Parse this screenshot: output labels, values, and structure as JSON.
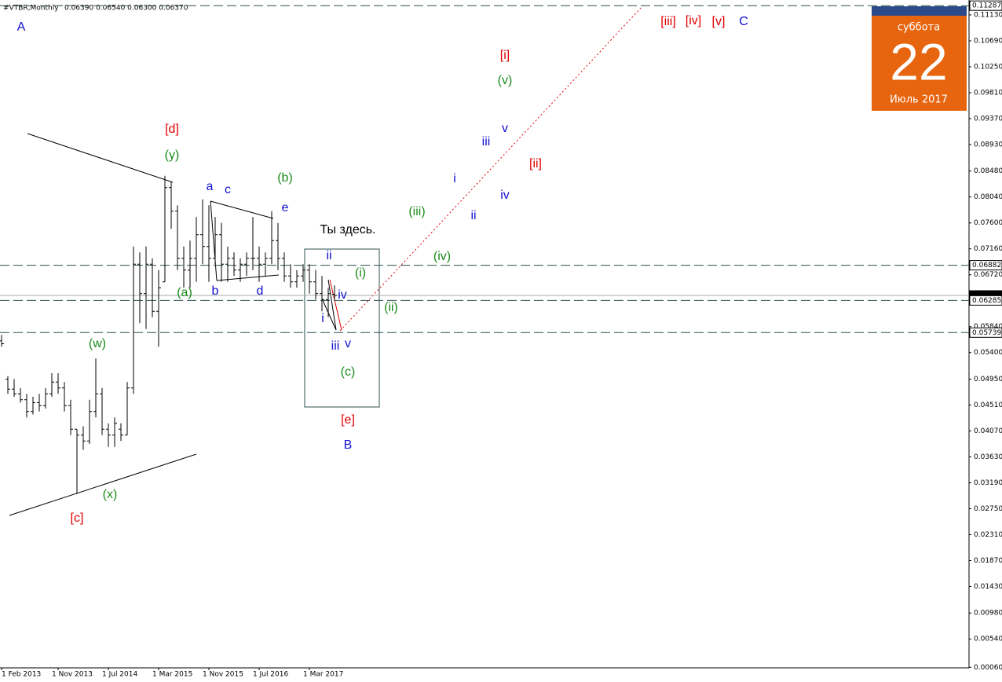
{
  "chart_data": {
    "type": "ohlc",
    "title": "#VTBR,Monthly",
    "subtitle": "0.06390 0.06540 0.06300 0.06370",
    "categories": [
      "1 Feb 2013",
      null,
      null,
      null,
      null,
      null,
      null,
      null,
      null,
      "1 Nov 2013",
      null,
      null,
      null,
      null,
      null,
      null,
      null,
      "1 Jul 2014",
      null,
      null,
      null,
      null,
      null,
      null,
      null,
      "1 Mar 2015",
      null,
      null,
      null,
      null,
      null,
      null,
      null,
      "1 Nov 2015",
      null,
      null,
      null,
      null,
      null,
      null,
      null,
      "1 Jul 2016",
      null,
      null,
      null,
      null,
      null,
      null,
      null,
      "1 Mar 2017",
      null,
      null,
      null,
      null
    ],
    "open": [
      0.056,
      0.0495,
      0.0478,
      0.047,
      0.046,
      0.044,
      0.0455,
      0.045,
      0.047,
      0.049,
      0.048,
      0.045,
      0.041,
      0.04,
      0.039,
      0.044,
      0.047,
      0.041,
      0.04,
      0.041,
      0.04,
      0.048,
      0.069,
      0.064,
      0.069,
      0.061,
      0.066,
      0.082,
      0.078,
      0.07,
      0.068,
      0.07,
      0.074,
      0.072,
      0.07,
      0.074,
      0.069,
      0.07,
      0.068,
      0.069,
      0.07,
      0.07,
      0.069,
      0.07,
      0.073,
      0.07,
      0.067,
      0.066,
      0.067,
      0.068,
      0.066,
      0.064,
      0.063,
      0.0639
    ],
    "high": [
      0.057,
      0.05,
      0.0495,
      0.048,
      0.047,
      0.0465,
      0.047,
      0.048,
      0.0505,
      0.0505,
      0.049,
      0.046,
      0.041,
      0.0415,
      0.046,
      0.053,
      0.048,
      0.042,
      0.043,
      0.042,
      0.049,
      0.072,
      0.071,
      0.072,
      0.07,
      0.068,
      0.084,
      0.083,
      0.079,
      0.072,
      0.073,
      0.077,
      0.08,
      0.079,
      0.077,
      0.076,
      0.072,
      0.071,
      0.07,
      0.071,
      0.077,
      0.072,
      0.071,
      0.078,
      0.076,
      0.071,
      0.069,
      0.068,
      0.069,
      0.069,
      0.068,
      0.067,
      0.065,
      0.0654
    ],
    "low": [
      0.055,
      0.047,
      0.0465,
      0.0455,
      0.043,
      0.0435,
      0.044,
      0.0445,
      0.0465,
      0.047,
      0.044,
      0.04,
      0.03,
      0.0375,
      0.0385,
      0.043,
      0.04,
      0.038,
      0.038,
      0.039,
      0.04,
      0.047,
      0.059,
      0.058,
      0.06,
      0.055,
      0.066,
      0.075,
      0.068,
      0.065,
      0.065,
      0.066,
      0.069,
      0.066,
      0.069,
      0.066,
      0.066,
      0.067,
      0.066,
      0.067,
      0.068,
      0.066,
      0.067,
      0.069,
      0.068,
      0.066,
      0.065,
      0.065,
      0.066,
      0.064,
      0.063,
      0.061,
      0.06,
      0.063
    ],
    "close": [
      0.0555,
      0.0478,
      0.047,
      0.046,
      0.044,
      0.0455,
      0.045,
      0.047,
      0.049,
      0.048,
      0.045,
      0.041,
      0.04,
      0.039,
      0.044,
      0.047,
      0.041,
      0.04,
      0.042,
      0.04,
      0.048,
      0.069,
      0.064,
      0.069,
      0.061,
      0.065,
      0.082,
      0.078,
      0.07,
      0.068,
      0.07,
      0.074,
      0.072,
      0.07,
      0.074,
      0.069,
      0.07,
      0.068,
      0.069,
      0.07,
      0.07,
      0.069,
      0.07,
      0.073,
      0.07,
      0.067,
      0.066,
      0.067,
      0.068,
      0.066,
      0.064,
      0.063,
      0.064,
      0.0637
    ],
    "color": "#000000",
    "ylim": [
      0.0005,
      0.11383
    ],
    "yticks": [
      {
        "value": 0.1113,
        "label": "0.11130"
      },
      {
        "value": 0.1069,
        "label": "0.10690"
      },
      {
        "value": 0.1025,
        "label": "0.10250"
      },
      {
        "value": 0.0981,
        "label": "0.09810"
      },
      {
        "value": 0.0937,
        "label": "0.09370"
      },
      {
        "value": 0.0893,
        "label": "0.08930"
      },
      {
        "value": 0.0848,
        "label": "0.08480"
      },
      {
        "value": 0.0804,
        "label": "0.08040"
      },
      {
        "value": 0.076,
        "label": "0.07600"
      },
      {
        "value": 0.0716,
        "label": "0.07160"
      },
      {
        "value": 0.0672,
        "label": "0.06720"
      },
      {
        "value": 0.0584,
        "label": "0.05840"
      },
      {
        "value": 0.054,
        "label": "0.05400"
      },
      {
        "value": 0.0495,
        "label": "0.04950"
      },
      {
        "value": 0.0451,
        "label": "0.04510"
      },
      {
        "value": 0.0407,
        "label": "0.04070"
      },
      {
        "value": 0.0363,
        "label": "0.03630"
      },
      {
        "value": 0.0319,
        "label": "0.03190"
      },
      {
        "value": 0.0275,
        "label": "0.02750"
      },
      {
        "value": 0.0231,
        "label": "0.02310"
      },
      {
        "value": 0.0187,
        "label": "0.01870"
      },
      {
        "value": 0.0143,
        "label": "0.01430"
      },
      {
        "value": 0.0098,
        "label": "0.00980"
      },
      {
        "value": 0.0054,
        "label": "0.00540"
      },
      {
        "value": 0.0006,
        "label": "0.00060"
      }
    ],
    "levels": [
      {
        "value": 0.11287,
        "label": "0.11287",
        "current": false
      },
      {
        "value": 0.06882,
        "label": "0.06882",
        "current": false
      },
      {
        "value": 0.0637,
        "label": "0.06370",
        "current": true
      },
      {
        "value": 0.06285,
        "label": "0.06285",
        "current": false
      },
      {
        "value": 0.05739,
        "label": "0.05739",
        "current": false
      }
    ],
    "annotations": [
      {
        "text": "A",
        "color": "#1010d0"
      },
      {
        "text": "[c]",
        "color": "#e00000"
      },
      {
        "text": "(x)",
        "color": "#1a8a1a"
      },
      {
        "text": "(w)",
        "color": "#1a8a1a"
      },
      {
        "text": "[d]",
        "color": "#e00000"
      },
      {
        "text": "(y)",
        "color": "#1a8a1a"
      },
      {
        "text": "(a)",
        "color": "#1a8a1a"
      },
      {
        "text": "a",
        "color": "#1010d0"
      },
      {
        "text": "c",
        "color": "#1010d0"
      },
      {
        "text": "b",
        "color": "#1010d0"
      },
      {
        "text": "d",
        "color": "#1010d0"
      },
      {
        "text": "(b)",
        "color": "#1a8a1a"
      },
      {
        "text": "e",
        "color": "#1010d0"
      },
      {
        "text": "ii",
        "color": "#1010d0"
      },
      {
        "text": "(i)",
        "color": "#1a8a1a"
      },
      {
        "text": "iv",
        "color": "#1010d0"
      },
      {
        "text": "i",
        "color": "#1010d0"
      },
      {
        "text": "(ii)",
        "color": "#1a8a1a"
      },
      {
        "text": "iii",
        "color": "#1010d0"
      },
      {
        "text": "v",
        "color": "#1010d0"
      },
      {
        "text": "(c)",
        "color": "#1a8a1a"
      },
      {
        "text": "[e]",
        "color": "#e00000"
      },
      {
        "text": "B",
        "color": "#1010d0"
      },
      {
        "text": "(iii)",
        "color": "#1a8a1a"
      },
      {
        "text": "(iv)",
        "color": "#1a8a1a"
      },
      {
        "text": "i",
        "color": "#1010d0"
      },
      {
        "text": "ii",
        "color": "#1010d0"
      },
      {
        "text": "iii",
        "color": "#1010d0"
      },
      {
        "text": "v",
        "color": "#1010d0"
      },
      {
        "text": "iv",
        "color": "#1010d0"
      },
      {
        "text": "[ii]",
        "color": "#e00000"
      },
      {
        "text": "[i]",
        "color": "#e00000"
      },
      {
        "text": "(v)",
        "color": "#1a8a1a"
      },
      {
        "text": "[iii]",
        "color": "#e00000"
      },
      {
        "text": "[iv]",
        "color": "#e00000"
      },
      {
        "text": "[v]",
        "color": "#e00000"
      },
      {
        "text": "C",
        "color": "#1010d0"
      },
      {
        "text": "Ты здесь.",
        "color": "#000000"
      }
    ],
    "calendar": {
      "weekday": "суббота",
      "day": "22",
      "month": "Июль 2017"
    }
  }
}
